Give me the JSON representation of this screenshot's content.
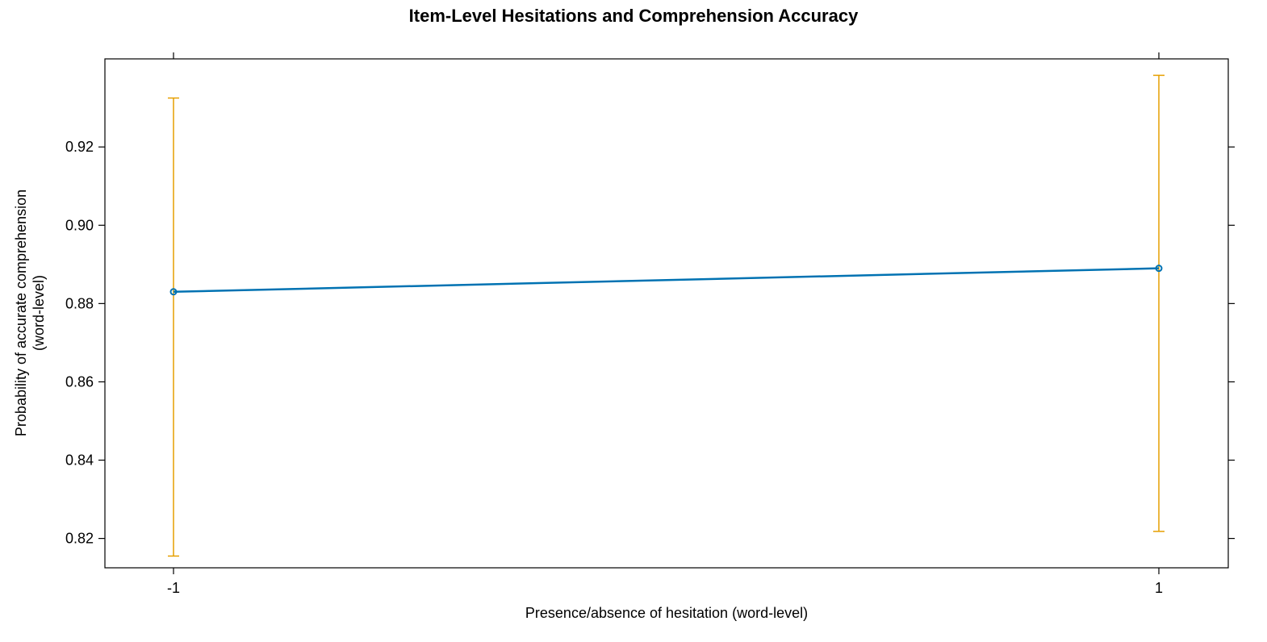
{
  "chart_data": {
    "type": "line",
    "title": "Item-Level Hesitations and Comprehension Accuracy",
    "xlabel": "Presence/absence of hesitation (word-level)",
    "ylabel_lines": [
      "Probability of accurate comprehension",
      "(word-level)"
    ],
    "x_ticks": [
      "-1",
      "1"
    ],
    "y_ticks": [
      "0.82",
      "0.84",
      "0.86",
      "0.88",
      "0.90",
      "0.92"
    ],
    "ylim": [
      0.8125,
      0.9425
    ],
    "grid": false,
    "series": [
      {
        "x": [
          -1,
          1
        ],
        "values": [
          0.883,
          0.889
        ],
        "lower": [
          0.8155,
          0.8218
        ],
        "upper": [
          0.9325,
          0.9383
        ],
        "line_color": "#0072B2",
        "errorbar_color": "#E69F00"
      }
    ]
  }
}
